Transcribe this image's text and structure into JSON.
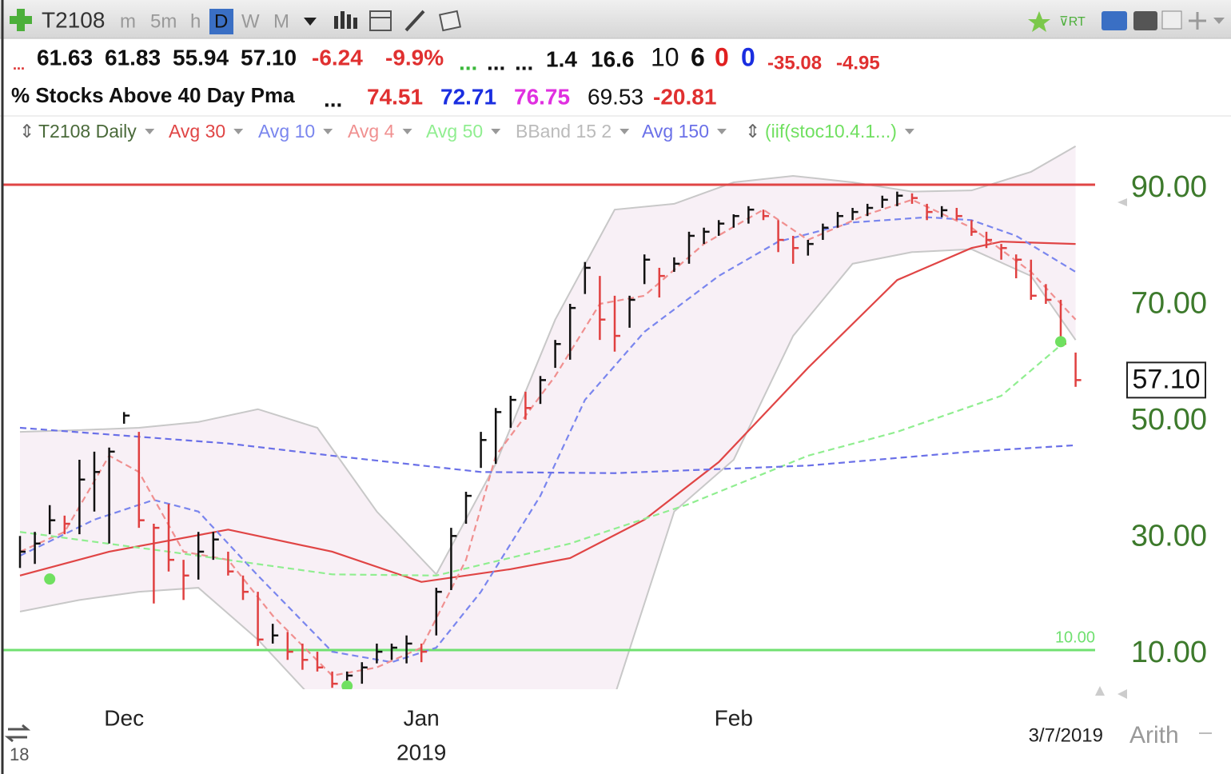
{
  "toolbar": {
    "symbol": "T2108",
    "intervals": [
      "m",
      "5m",
      "h",
      "D",
      "W",
      "M"
    ]
  },
  "quote": [
    "...",
    "61.63",
    "61.83",
    "55.94",
    "57.10",
    "-6.24",
    "-9.9%",
    "...",
    "...",
    "...",
    "1.4",
    "16.6",
    "10",
    "6",
    "0",
    "0",
    "-35.08",
    "-4.95"
  ],
  "summary": {
    "name": "% Stocks Above 40 Day Pma",
    "values": [
      "...",
      "74.51",
      "72.71",
      "76.75",
      "69.53",
      "-20.81"
    ]
  },
  "chart_data": {
    "type": "ohlc",
    "categories": [
      null,
      null,
      null,
      null,
      null,
      null,
      null,
      "Dec",
      null,
      null,
      null,
      null,
      null,
      null,
      null,
      null,
      null,
      null,
      null,
      null,
      null,
      null,
      null,
      null,
      null,
      null,
      null,
      "Jan",
      null,
      null,
      null,
      null,
      null,
      null,
      null,
      null,
      null,
      null,
      null,
      null,
      null,
      null,
      null,
      null,
      null,
      null,
      null,
      null,
      "Feb",
      null,
      null,
      null,
      null,
      null,
      null,
      null,
      null,
      null,
      null,
      null,
      null,
      null,
      null,
      null,
      null,
      null,
      null,
      null,
      null,
      null,
      null,
      null
    ],
    "year_label": "2019",
    "date_label": "3/7/2019",
    "scale_label": "Arith",
    "corner_label": "18",
    "ylim": [
      3.0,
      98.0
    ],
    "yticks": [
      {
        "value": 10,
        "label": "10.00"
      },
      {
        "value": 30,
        "label": "30.00"
      },
      {
        "value": 50,
        "label": "50.00"
      },
      {
        "value": 70,
        "label": "70.00"
      },
      {
        "value": 90,
        "label": "90.00"
      }
    ],
    "price": {
      "name": "T2108 Daily",
      "up_color": "#111111",
      "down_color": "#e04040",
      "high": [
        30.3,
        31.0,
        35.6,
        33.8,
        43.4,
        44.8,
        45.5,
        51.6,
        48.2,
        32.4,
        35.8,
        26.2,
        31.0,
        31.0,
        27.6,
        23.5,
        20.7,
        15.2,
        13.8,
        11.8,
        10.4,
        7.0,
        7.0,
        8.6,
        11.8,
        11.8,
        13.2,
        11.8,
        21.4,
        31.7,
        37.9,
        48.2,
        52.3,
        54.4,
        55.1,
        57.8,
        64.0,
        70.2,
        77.4,
        75.0,
        71.6,
        71.6,
        78.7,
        76.4,
        78.2,
        82.6,
        83.3,
        84.6,
        85.6,
        87.0,
        86.4,
        84.6,
        81.9,
        81.2,
        84.0,
        86.0,
        86.7,
        87.4,
        88.8,
        89.5,
        89.2,
        87.4,
        87.0,
        86.7,
        84.6,
        82.6,
        80.5,
        78.7,
        77.8,
        73.6,
        70.9,
        61.83
      ],
      "low": [
        24.8,
        25.5,
        30.6,
        30.6,
        30.6,
        34.5,
        29.0,
        49.6,
        31.7,
        18.7,
        24.2,
        19.3,
        22.8,
        26.2,
        23.5,
        19.3,
        11.4,
        11.8,
        9.0,
        7.3,
        7.0,
        4.2,
        4.5,
        4.9,
        8.4,
        9.0,
        8.4,
        8.6,
        13.2,
        21.0,
        32.4,
        42.0,
        42.7,
        48.9,
        50.3,
        53.0,
        59.2,
        60.6,
        71.9,
        64.0,
        62.0,
        66.1,
        73.6,
        71.3,
        75.7,
        77.1,
        80.5,
        81.9,
        83.3,
        84.0,
        84.6,
        79.1,
        77.1,
        78.5,
        81.2,
        83.3,
        84.6,
        85.3,
        86.7,
        87.0,
        87.4,
        84.6,
        85.1,
        84.6,
        81.9,
        79.8,
        77.8,
        74.6,
        70.9,
        70.2,
        63.2,
        55.94
      ],
      "close": [
        27.6,
        29.0,
        33.0,
        32.4,
        40.0,
        41.3,
        44.8,
        51.0,
        33.0,
        31.7,
        26.2,
        23.5,
        27.6,
        29.7,
        24.2,
        20.7,
        12.5,
        13.2,
        10.4,
        9.0,
        7.7,
        4.9,
        6.3,
        7.7,
        10.4,
        11.1,
        11.8,
        10.4,
        20.7,
        30.3,
        37.2,
        46.8,
        51.6,
        53.7,
        52.3,
        57.1,
        63.3,
        69.5,
        76.4,
        67.5,
        64.7,
        70.9,
        77.8,
        75.0,
        77.1,
        81.9,
        82.6,
        84.0,
        85.3,
        86.4,
        85.3,
        81.2,
        79.8,
        80.5,
        83.3,
        85.3,
        86.0,
        86.7,
        88.1,
        88.8,
        88.4,
        86.0,
        86.3,
        85.3,
        82.6,
        81.2,
        79.8,
        77.8,
        71.6,
        70.9,
        63.34,
        57.1
      ]
    },
    "series": [
      {
        "name": "Avg 30",
        "color": "#e04545",
        "dash": false,
        "x": [
          0,
          6,
          14,
          21,
          27,
          33,
          37,
          42,
          47,
          53,
          59,
          64,
          66,
          71
        ],
        "values": [
          23.5,
          27.6,
          31.4,
          27.6,
          22.4,
          24.6,
          26.5,
          33.1,
          43.0,
          59.2,
          74.3,
          79.8,
          80.9,
          80.5
        ]
      },
      {
        "name": "Avg 10",
        "color": "#7a86ee",
        "dash": true,
        "x": [
          0,
          5,
          9,
          12,
          16,
          21,
          25,
          28,
          31,
          35,
          38,
          42,
          47,
          51,
          56,
          61,
          64,
          67,
          71
        ],
        "values": [
          26.9,
          33.1,
          36.5,
          34.5,
          23.5,
          10.4,
          8.6,
          11.1,
          20.7,
          37.2,
          53.7,
          65.4,
          75.0,
          80.9,
          84.2,
          85.1,
          84.6,
          81.9,
          75.7
        ]
      },
      {
        "name": "Avg 4",
        "color": "#f09090",
        "dash": true,
        "x": [
          0,
          3,
          6,
          8,
          11,
          14,
          17,
          21,
          24,
          27,
          30,
          32,
          36,
          39,
          42,
          46,
          50,
          53,
          57,
          60,
          64,
          68,
          71
        ],
        "values": [
          27.6,
          31.0,
          44.1,
          41.3,
          27.6,
          26.2,
          16.6,
          6.3,
          7.7,
          11.1,
          26.2,
          44.1,
          57.8,
          70.2,
          71.6,
          80.5,
          86.4,
          81.2,
          85.6,
          88.1,
          83.3,
          75.7,
          67.5
        ]
      },
      {
        "name": "Avg 50",
        "color": "#90ee90",
        "dash": true,
        "x": [
          0,
          10,
          21,
          28,
          37,
          45,
          53,
          59,
          66,
          70
        ],
        "values": [
          31.0,
          27.6,
          23.7,
          23.5,
          29.0,
          35.8,
          44.1,
          48.2,
          54.4,
          63.1
        ]
      },
      {
        "name": "Avg 150",
        "color": "#6a70e8",
        "dash": true,
        "x": [
          0,
          14,
          21,
          31,
          40,
          53,
          64,
          71
        ],
        "values": [
          48.9,
          46.2,
          44.1,
          41.3,
          41.1,
          42.4,
          44.8,
          45.9
        ]
      }
    ],
    "bband": {
      "name": "BBand 15 2",
      "color": "#c8c8c8",
      "fill": "#f8f0f6",
      "x": [
        0,
        4,
        8,
        12,
        16,
        20,
        24,
        28,
        32,
        36,
        40,
        44,
        48,
        52,
        56,
        60,
        64,
        68,
        71
      ],
      "upper": [
        48.2,
        48.5,
        48.9,
        49.9,
        52.1,
        48.9,
        34.5,
        23.7,
        42.7,
        67.5,
        86.4,
        87.4,
        91.1,
        92.2,
        91.1,
        89.5,
        89.7,
        92.9,
        97.3
      ],
      "lower": [
        17.3,
        19.3,
        20.7,
        21.4,
        12.5,
        1.5,
        -4.0,
        -8.1,
        -9.5,
        -6.8,
        2.9,
        34.5,
        43.4,
        64.7,
        77.1,
        79.1,
        79.6,
        75.0,
        64.0
      ]
    },
    "signals": {
      "name": "(iif(stoc10.4.1...)",
      "color": "#70e060",
      "x": [
        2,
        22,
        70
      ],
      "values": [
        22.9,
        4.5,
        63.7
      ]
    },
    "hlines": [
      {
        "value": 90,
        "color": "#e04545"
      },
      {
        "value": 10,
        "color": "#70e070",
        "label": "10.00"
      }
    ]
  }
}
